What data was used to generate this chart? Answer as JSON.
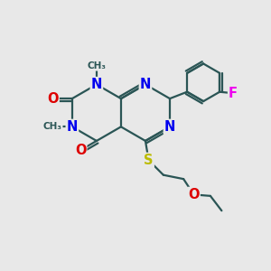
{
  "background_color": "#e8e8e8",
  "atom_colors": {
    "N": "#0000ee",
    "O": "#dd0000",
    "S": "#bbbb00",
    "F": "#ee00ee",
    "C": "#2a5555",
    "methyl": "#2a5555"
  },
  "bond_color": "#2a5555",
  "bond_width": 1.6,
  "doffset": 0.07,
  "font_size": 10.5
}
